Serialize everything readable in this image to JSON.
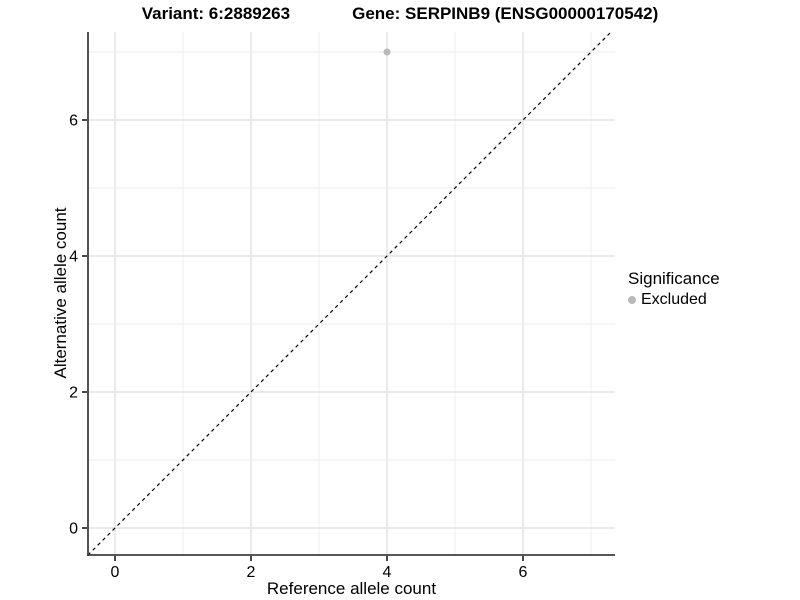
{
  "title": {
    "variant": "Variant: 6:2889263",
    "gene": "Gene: SERPINB9 (ENSG00000170542)"
  },
  "chart_data": {
    "type": "scatter",
    "title": "Variant: 6:2889263  Gene: SERPINB9 (ENSG00000170542)",
    "xlabel": "Reference allele count",
    "ylabel": "Alternative allele count",
    "xlim": [
      -0.4,
      7.35
    ],
    "ylim": [
      -0.4,
      7.3
    ],
    "x_ticks": [
      0,
      2,
      4,
      6
    ],
    "y_ticks": [
      0,
      2,
      4,
      6
    ],
    "x_minor_ticks": [
      1,
      3,
      5,
      7
    ],
    "y_minor_ticks": [
      1,
      3,
      5,
      7
    ],
    "grid": true,
    "series": [
      {
        "name": "Excluded",
        "color": "#b9b9b9",
        "points": [
          {
            "x": 4,
            "y": 7
          }
        ]
      }
    ],
    "reference_line": {
      "type": "identity",
      "style": "dashed",
      "color": "#000000"
    },
    "legend": {
      "title": "Significance",
      "position": "right",
      "items": [
        {
          "label": "Excluded",
          "color": "#b9b9b9"
        }
      ]
    },
    "colors": {
      "grid_major": "#e4e4e4",
      "grid_minor": "#eeeeee",
      "axis_line": "#3f3f3f",
      "tick_mark": "#343434",
      "tick_text": "#000000"
    }
  }
}
